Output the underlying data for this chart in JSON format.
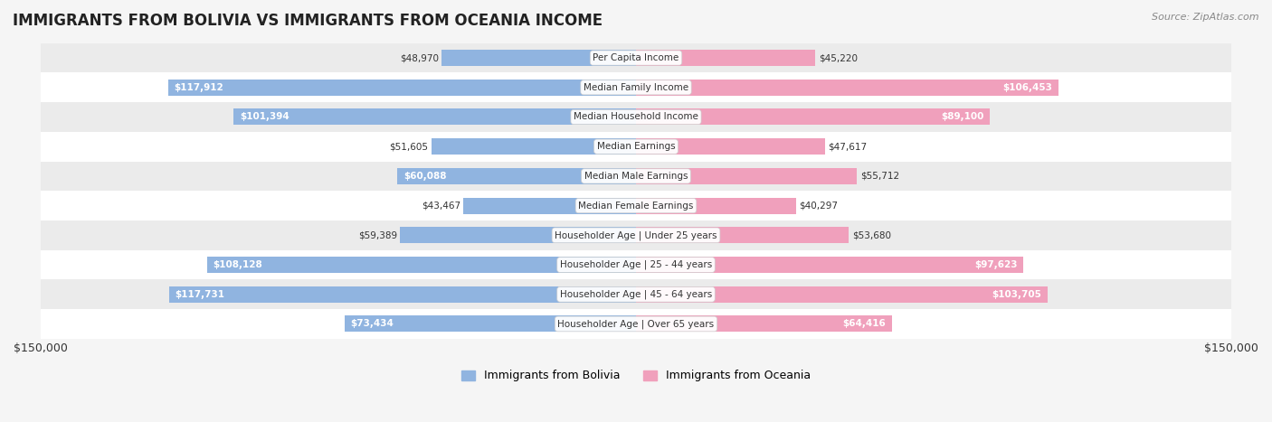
{
  "title": "IMMIGRANTS FROM BOLIVIA VS IMMIGRANTS FROM OCEANIA INCOME",
  "source": "Source: ZipAtlas.com",
  "categories": [
    "Per Capita Income",
    "Median Family Income",
    "Median Household Income",
    "Median Earnings",
    "Median Male Earnings",
    "Median Female Earnings",
    "Householder Age | Under 25 years",
    "Householder Age | 25 - 44 years",
    "Householder Age | 45 - 64 years",
    "Householder Age | Over 65 years"
  ],
  "bolivia_values": [
    48970,
    117912,
    101394,
    51605,
    60088,
    43467,
    59389,
    108128,
    117731,
    73434
  ],
  "oceania_values": [
    45220,
    106453,
    89100,
    47617,
    55712,
    40297,
    53680,
    97623,
    103705,
    64416
  ],
  "bolivia_color": "#90b4e0",
  "bolivia_dark_color": "#5a8fc7",
  "oceania_color": "#f0a0bc",
  "oceania_dark_color": "#e06090",
  "max_value": 150000,
  "x_label_left": "$150,000",
  "x_label_right": "$150,000",
  "legend_bolivia": "Immigrants from Bolivia",
  "legend_oceania": "Immigrants from Oceania",
  "bg_color": "#f5f5f5",
  "row_bg_color": "#ffffff",
  "row_alt_bg_color": "#f0f0f0"
}
